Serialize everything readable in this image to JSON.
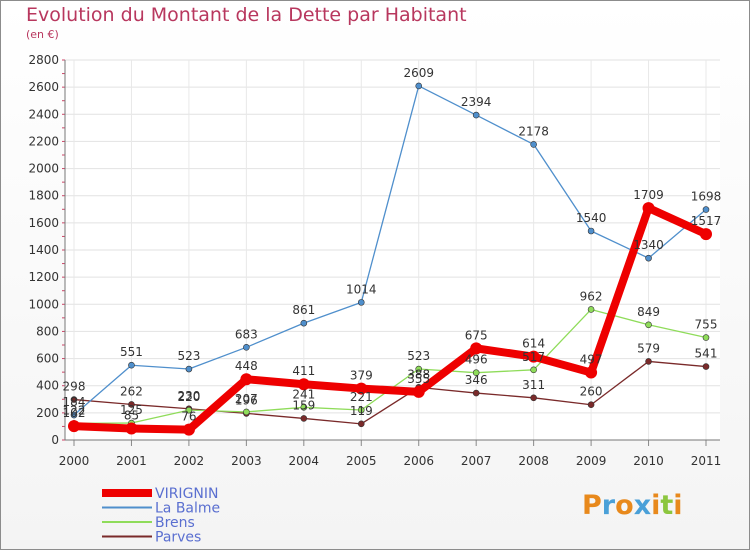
{
  "title": "Evolution du Montant de la Dette par Habitant",
  "unit": "(en €)",
  "logo": {
    "letters": [
      "P",
      "r",
      "o",
      "x",
      "i",
      "t",
      "i"
    ],
    "colors": [
      "#e8891c",
      "#4aa0d8",
      "#e8891c",
      "#4aa0d8",
      "#e8891c",
      "#8cc63f",
      "#e8891c"
    ]
  },
  "chart_data": {
    "type": "line",
    "x": [
      "2000",
      "2001",
      "2002",
      "2003",
      "2004",
      "2005",
      "2006",
      "2007",
      "2008",
      "2009",
      "2010",
      "2011"
    ],
    "ylim": [
      0,
      2800
    ],
    "yticks": [
      0,
      200,
      400,
      600,
      800,
      1000,
      1200,
      1400,
      1600,
      1800,
      2000,
      2200,
      2400,
      2600,
      2800
    ],
    "grid": true,
    "legend_position": "bottom-left",
    "series": [
      {
        "name": "VIRIGNIN",
        "color": "#ee0000",
        "values": [
          102,
          85,
          76,
          448,
          411,
          379,
          355,
          675,
          614,
          497,
          1709,
          1517
        ],
        "labels": [
          "102",
          "85",
          "76",
          "448",
          "411",
          "379",
          "355",
          "675",
          "614",
          "497",
          "1709",
          "1517"
        ]
      },
      {
        "name": "La Balme",
        "color": "#4f8fcc",
        "values": [
          184,
          551,
          523,
          683,
          861,
          1014,
          2609,
          2394,
          2178,
          1540,
          1340,
          1698
        ],
        "labels": [
          "184",
          "551",
          "523",
          "683",
          "861",
          "1014",
          "2609",
          "2394",
          "2178",
          "1540",
          "1340",
          "1698"
        ]
      },
      {
        "name": "Brens",
        "color": "#8fdc5a",
        "values": [
          122,
          125,
          220,
          207,
          241,
          221,
          523,
          496,
          517,
          962,
          849,
          755
        ],
        "labels": [
          "122",
          "125",
          "220",
          "207",
          "241",
          "221",
          "523",
          "496",
          "517",
          "962",
          "849",
          "755"
        ]
      },
      {
        "name": "Parves",
        "color": "#7a2a2a",
        "values": [
          298,
          262,
          230,
          196,
          159,
          119,
          388,
          346,
          311,
          260,
          579,
          541
        ],
        "labels": [
          "298",
          "262",
          "230",
          "196",
          "159",
          "119",
          "388",
          "346",
          "311",
          "260",
          "579",
          "541"
        ]
      }
    ]
  }
}
